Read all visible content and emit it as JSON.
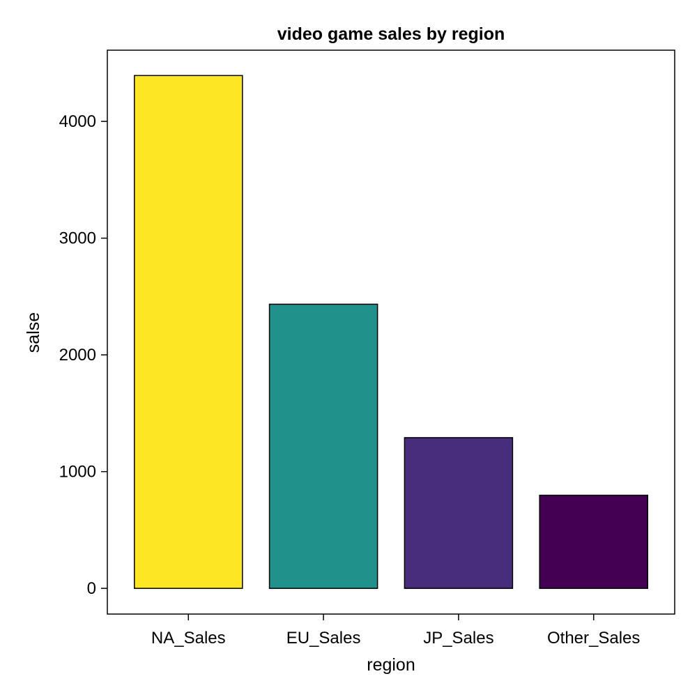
{
  "chart_data": {
    "type": "bar",
    "title": "video game sales by region",
    "xlabel": "region",
    "ylabel": "salse",
    "categories": [
      "NA_Sales",
      "EU_Sales",
      "JP_Sales",
      "Other_Sales"
    ],
    "values": [
      4392.95,
      2434.13,
      1291.02,
      797.75
    ],
    "colors": [
      "#fde725",
      "#21918c",
      "#472d7b",
      "#440154"
    ],
    "ylim": [
      -220,
      4610
    ],
    "yticks": [
      0,
      1000,
      2000,
      3000,
      4000
    ],
    "grid": false,
    "legend": "none"
  }
}
